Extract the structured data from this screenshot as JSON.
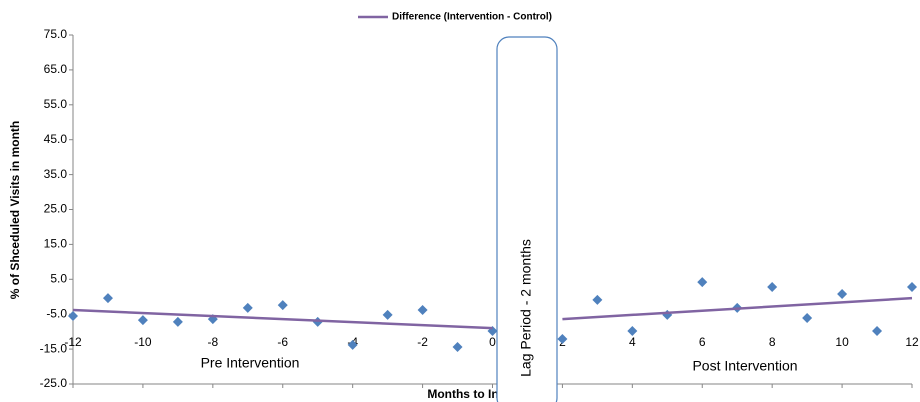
{
  "chart_data": {
    "type": "scatter",
    "x_label": "Months to Intervention",
    "y_label": "% of Shceduled Visits in month",
    "annotations": [
      "Pre Intervention",
      "Post Intervention",
      "Lag Period - 2 months"
    ],
    "xlim": [
      -12,
      12
    ],
    "xticks": [
      -12,
      -10,
      -8,
      -6,
      -4,
      -2,
      0,
      2,
      4,
      6,
      8,
      10,
      12
    ],
    "ylim": [
      -25,
      75
    ],
    "yticks": [
      {
        "value": -25,
        "label": "-25.0"
      },
      {
        "value": -15,
        "label": "-15.0"
      },
      {
        "value": -5,
        "label": "-5.0"
      },
      {
        "value": 5,
        "label": "5.0"
      },
      {
        "value": 15,
        "label": "15.0"
      },
      {
        "value": 25,
        "label": "25.0"
      },
      {
        "value": 35,
        "label": "35.0"
      },
      {
        "value": 45,
        "label": "45.0"
      },
      {
        "value": 55,
        "label": "55.0"
      },
      {
        "value": 65,
        "label": "65.0"
      },
      {
        "value": 75,
        "label": "75.0"
      }
    ],
    "grid": false,
    "legend": "top",
    "series": [
      {
        "type": "scatter",
        "color": "#4f81bd",
        "x": [
          -12,
          -11,
          -10,
          -9,
          -8,
          -7,
          -6,
          -5,
          -4,
          -3,
          -2,
          -1,
          0,
          2,
          3,
          4,
          5,
          6,
          7,
          8,
          9,
          10,
          11,
          12
        ],
        "values": [
          -5.5,
          -0.4,
          -6.7,
          -7.2,
          -6.4,
          -3.2,
          -2.4,
          -7.2,
          -13.8,
          -5.2,
          -3.8,
          -14.4,
          -9.8,
          -12.1,
          -0.9,
          -9.8,
          -5.2,
          4.2,
          -3.2,
          2.8,
          -6.1,
          0.8,
          -9.8,
          2.8
        ]
      },
      {
        "type": "line",
        "name": "Difference (Intervention - Control)",
        "color": "#8064a2",
        "x": [
          -12,
          0,
          1,
          2,
          12
        ],
        "values": [
          -3.8,
          -9.0,
          null,
          -6.4,
          -0.4
        ]
      }
    ]
  }
}
